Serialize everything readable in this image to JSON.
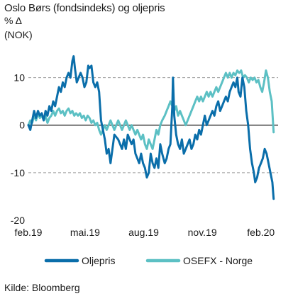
{
  "title": "Oslo Børs (fondsindeks) og oljepris",
  "unit_line1": "% Δ",
  "unit_line2": "(NOK)",
  "source": "Kilde: Bloomberg",
  "chart_data": {
    "type": "line",
    "ylim": [
      -20,
      15
    ],
    "yticks": [
      {
        "value": 10,
        "label": "10"
      },
      {
        "value": 0,
        "label": "0"
      },
      {
        "value": -10,
        "label": "-10"
      },
      {
        "value": -20,
        "label": "-20"
      }
    ],
    "xlim": [
      "2019-02-01",
      "2020-02-28"
    ],
    "xticks": [
      {
        "date": "2019-02-01",
        "label": "feb.19"
      },
      {
        "date": "2019-05-01",
        "label": "mai.19"
      },
      {
        "date": "2019-08-01",
        "label": "aug.19"
      },
      {
        "date": "2019-11-01",
        "label": "nov.19"
      },
      {
        "date": "2020-02-01",
        "label": "feb.20"
      }
    ],
    "grid": "horizontal dashed",
    "legend_position": "bottom",
    "series": [
      {
        "name": "Oljepris",
        "color": "#0a6eaa",
        "points": [
          [
            "2019-02-01",
            0
          ],
          [
            "2019-02-04",
            -1
          ],
          [
            "2019-02-07",
            1
          ],
          [
            "2019-02-10",
            3
          ],
          [
            "2019-02-13",
            1.5
          ],
          [
            "2019-02-16",
            3
          ],
          [
            "2019-02-19",
            2
          ],
          [
            "2019-02-22",
            2.5
          ],
          [
            "2019-02-25",
            1
          ],
          [
            "2019-02-28",
            3
          ],
          [
            "2019-03-03",
            2
          ],
          [
            "2019-03-06",
            4
          ],
          [
            "2019-03-09",
            3
          ],
          [
            "2019-03-12",
            5
          ],
          [
            "2019-03-15",
            4
          ],
          [
            "2019-03-18",
            6
          ],
          [
            "2019-03-21",
            8
          ],
          [
            "2019-03-24",
            7
          ],
          [
            "2019-03-27",
            9
          ],
          [
            "2019-03-30",
            8
          ],
          [
            "2019-04-02",
            10
          ],
          [
            "2019-04-05",
            11
          ],
          [
            "2019-04-08",
            10
          ],
          [
            "2019-04-11",
            13.5
          ],
          [
            "2019-04-13",
            14.5
          ],
          [
            "2019-04-15",
            12
          ],
          [
            "2019-04-18",
            9
          ],
          [
            "2019-04-21",
            10
          ],
          [
            "2019-04-24",
            11
          ],
          [
            "2019-04-27",
            10
          ],
          [
            "2019-04-30",
            8
          ],
          [
            "2019-05-03",
            9
          ],
          [
            "2019-05-06",
            12.5
          ],
          [
            "2019-05-08",
            12
          ],
          [
            "2019-05-11",
            12.5
          ],
          [
            "2019-05-14",
            9
          ],
          [
            "2019-05-17",
            8
          ],
          [
            "2019-05-20",
            9
          ],
          [
            "2019-05-23",
            7
          ],
          [
            "2019-05-26",
            1
          ],
          [
            "2019-05-29",
            -1
          ],
          [
            "2019-06-01",
            -3
          ],
          [
            "2019-06-04",
            -6
          ],
          [
            "2019-06-07",
            -5
          ],
          [
            "2019-06-10",
            -8
          ],
          [
            "2019-06-13",
            -5
          ],
          [
            "2019-06-16",
            -2
          ],
          [
            "2019-06-19",
            -2.5
          ],
          [
            "2019-06-22",
            -3
          ],
          [
            "2019-06-25",
            -4
          ],
          [
            "2019-06-28",
            -5
          ],
          [
            "2019-07-01",
            -3
          ],
          [
            "2019-07-04",
            -5
          ],
          [
            "2019-07-07",
            -2
          ],
          [
            "2019-07-10",
            -3
          ],
          [
            "2019-07-13",
            -4
          ],
          [
            "2019-07-16",
            -3
          ],
          [
            "2019-07-19",
            -6
          ],
          [
            "2019-07-22",
            -7
          ],
          [
            "2019-07-25",
            -8
          ],
          [
            "2019-07-28",
            -6
          ],
          [
            "2019-07-31",
            -8
          ],
          [
            "2019-08-03",
            -9
          ],
          [
            "2019-08-06",
            -11
          ],
          [
            "2019-08-09",
            -10
          ],
          [
            "2019-08-12",
            -6
          ],
          [
            "2019-08-15",
            -8
          ],
          [
            "2019-08-18",
            -9
          ],
          [
            "2019-08-21",
            -7
          ],
          [
            "2019-08-24",
            -9
          ],
          [
            "2019-08-27",
            -4
          ],
          [
            "2019-08-30",
            -6
          ],
          [
            "2019-09-03",
            -8
          ],
          [
            "2019-09-06",
            -7
          ],
          [
            "2019-09-09",
            -5
          ],
          [
            "2019-09-12",
            -4
          ],
          [
            "2019-09-15",
            4
          ],
          [
            "2019-09-16",
            10
          ],
          [
            "2019-09-18",
            2
          ],
          [
            "2019-09-21",
            -2
          ],
          [
            "2019-09-24",
            -4
          ],
          [
            "2019-09-27",
            -5
          ],
          [
            "2019-09-30",
            -3
          ],
          [
            "2019-10-03",
            -6
          ],
          [
            "2019-10-06",
            -5
          ],
          [
            "2019-10-09",
            -4
          ],
          [
            "2019-10-12",
            -3
          ],
          [
            "2019-10-15",
            -5
          ],
          [
            "2019-10-18",
            -4
          ],
          [
            "2019-10-21",
            -2
          ],
          [
            "2019-10-24",
            -3
          ],
          [
            "2019-10-27",
            -1
          ],
          [
            "2019-10-30",
            -2
          ],
          [
            "2019-11-02",
            0
          ],
          [
            "2019-11-05",
            2
          ],
          [
            "2019-11-08",
            0
          ],
          [
            "2019-11-11",
            1
          ],
          [
            "2019-11-14",
            2
          ],
          [
            "2019-11-17",
            3
          ],
          [
            "2019-11-20",
            2
          ],
          [
            "2019-11-23",
            4
          ],
          [
            "2019-11-26",
            5
          ],
          [
            "2019-11-29",
            3
          ],
          [
            "2019-12-02",
            4
          ],
          [
            "2019-12-05",
            5
          ],
          [
            "2019-12-08",
            6
          ],
          [
            "2019-12-11",
            5
          ],
          [
            "2019-12-14",
            7
          ],
          [
            "2019-12-17",
            8
          ],
          [
            "2019-12-20",
            9
          ],
          [
            "2019-12-23",
            8
          ],
          [
            "2019-12-26",
            10
          ],
          [
            "2019-12-28",
            7
          ],
          [
            "2019-12-31",
            6
          ],
          [
            "2020-01-03",
            10
          ],
          [
            "2020-01-06",
            8
          ],
          [
            "2020-01-09",
            3
          ],
          [
            "2020-01-12",
            0
          ],
          [
            "2020-01-15",
            -5
          ],
          [
            "2020-01-18",
            -8
          ],
          [
            "2020-01-21",
            -10
          ],
          [
            "2020-01-23",
            -12
          ],
          [
            "2020-01-26",
            -11
          ],
          [
            "2020-01-29",
            -9
          ],
          [
            "2020-02-01",
            -8
          ],
          [
            "2020-02-04",
            -7
          ],
          [
            "2020-02-07",
            -5
          ],
          [
            "2020-02-10",
            -6
          ],
          [
            "2020-02-13",
            -8
          ],
          [
            "2020-02-16",
            -10
          ],
          [
            "2020-02-19",
            -12
          ],
          [
            "2020-02-21",
            -15.5
          ]
        ]
      },
      {
        "name": "OSEFX - Norge",
        "color": "#5cc0c4",
        "points": [
          [
            "2019-02-01",
            0
          ],
          [
            "2019-02-04",
            1
          ],
          [
            "2019-02-07",
            0.5
          ],
          [
            "2019-02-10",
            2
          ],
          [
            "2019-02-13",
            1
          ],
          [
            "2019-02-16",
            2.5
          ],
          [
            "2019-02-19",
            1.5
          ],
          [
            "2019-02-22",
            2
          ],
          [
            "2019-02-25",
            1
          ],
          [
            "2019-02-28",
            2
          ],
          [
            "2019-03-03",
            0.5
          ],
          [
            "2019-03-06",
            1.5
          ],
          [
            "2019-03-09",
            2
          ],
          [
            "2019-03-12",
            3
          ],
          [
            "2019-03-15",
            2
          ],
          [
            "2019-03-18",
            3
          ],
          [
            "2019-03-21",
            3.5
          ],
          [
            "2019-03-24",
            2.5
          ],
          [
            "2019-03-27",
            3
          ],
          [
            "2019-03-30",
            2
          ],
          [
            "2019-04-02",
            3
          ],
          [
            "2019-04-05",
            3.5
          ],
          [
            "2019-04-08",
            2.5
          ],
          [
            "2019-04-11",
            3
          ],
          [
            "2019-04-14",
            2
          ],
          [
            "2019-04-17",
            2.5
          ],
          [
            "2019-04-20",
            2
          ],
          [
            "2019-04-23",
            2.5
          ],
          [
            "2019-04-26",
            1.5
          ],
          [
            "2019-04-29",
            2
          ],
          [
            "2019-05-02",
            1
          ],
          [
            "2019-05-05",
            2
          ],
          [
            "2019-05-08",
            1.5
          ],
          [
            "2019-05-11",
            0.5
          ],
          [
            "2019-05-14",
            1
          ],
          [
            "2019-05-17",
            0
          ],
          [
            "2019-05-20",
            0.5
          ],
          [
            "2019-05-23",
            -1
          ],
          [
            "2019-05-26",
            -2
          ],
          [
            "2019-05-29",
            -1
          ],
          [
            "2019-06-01",
            0
          ],
          [
            "2019-06-04",
            -1
          ],
          [
            "2019-06-07",
            0
          ],
          [
            "2019-06-10",
            1
          ],
          [
            "2019-06-13",
            0
          ],
          [
            "2019-06-16",
            -1
          ],
          [
            "2019-06-19",
            0
          ],
          [
            "2019-06-22",
            1
          ],
          [
            "2019-06-25",
            0
          ],
          [
            "2019-06-28",
            -1
          ],
          [
            "2019-07-01",
            0
          ],
          [
            "2019-07-04",
            1
          ],
          [
            "2019-07-07",
            0
          ],
          [
            "2019-07-10",
            -1
          ],
          [
            "2019-07-13",
            0
          ],
          [
            "2019-07-16",
            -1
          ],
          [
            "2019-07-19",
            -2
          ],
          [
            "2019-07-22",
            -1
          ],
          [
            "2019-07-25",
            -2
          ],
          [
            "2019-07-28",
            -3
          ],
          [
            "2019-07-31",
            -2
          ],
          [
            "2019-08-03",
            -4
          ],
          [
            "2019-08-06",
            -5
          ],
          [
            "2019-08-09",
            -3
          ],
          [
            "2019-08-12",
            -4
          ],
          [
            "2019-08-15",
            -5
          ],
          [
            "2019-08-18",
            -3
          ],
          [
            "2019-08-21",
            -1
          ],
          [
            "2019-08-24",
            -2
          ],
          [
            "2019-08-27",
            0
          ],
          [
            "2019-08-30",
            1
          ],
          [
            "2019-09-03",
            2
          ],
          [
            "2019-09-06",
            3
          ],
          [
            "2019-09-09",
            4
          ],
          [
            "2019-09-12",
            5
          ],
          [
            "2019-09-15",
            4
          ],
          [
            "2019-09-18",
            3
          ],
          [
            "2019-09-21",
            4
          ],
          [
            "2019-09-24",
            2
          ],
          [
            "2019-09-27",
            3
          ],
          [
            "2019-09-30",
            2
          ],
          [
            "2019-10-03",
            1
          ],
          [
            "2019-10-06",
            0
          ],
          [
            "2019-10-09",
            1
          ],
          [
            "2019-10-12",
            2
          ],
          [
            "2019-10-15",
            3
          ],
          [
            "2019-10-18",
            4
          ],
          [
            "2019-10-21",
            5
          ],
          [
            "2019-10-24",
            6
          ],
          [
            "2019-10-27",
            5
          ],
          [
            "2019-10-30",
            6
          ],
          [
            "2019-11-02",
            5
          ],
          [
            "2019-11-05",
            6
          ],
          [
            "2019-11-08",
            7
          ],
          [
            "2019-11-11",
            6
          ],
          [
            "2019-11-14",
            7
          ],
          [
            "2019-11-17",
            6
          ],
          [
            "2019-11-20",
            7
          ],
          [
            "2019-11-23",
            8
          ],
          [
            "2019-11-26",
            7
          ],
          [
            "2019-11-29",
            8
          ],
          [
            "2019-12-02",
            9
          ],
          [
            "2019-12-05",
            10
          ],
          [
            "2019-12-08",
            11
          ],
          [
            "2019-12-11",
            10
          ],
          [
            "2019-12-14",
            11
          ],
          [
            "2019-12-17",
            10
          ],
          [
            "2019-12-20",
            11
          ],
          [
            "2019-12-23",
            10.5
          ],
          [
            "2019-12-26",
            11.5
          ],
          [
            "2019-12-29",
            11
          ],
          [
            "2020-01-01",
            11.5
          ],
          [
            "2020-01-04",
            10
          ],
          [
            "2020-01-07",
            10.5
          ],
          [
            "2020-01-10",
            10
          ],
          [
            "2020-01-13",
            9
          ],
          [
            "2020-01-16",
            10
          ],
          [
            "2020-01-19",
            9.5
          ],
          [
            "2020-01-22",
            10
          ],
          [
            "2020-01-25",
            9
          ],
          [
            "2020-01-28",
            9.5
          ],
          [
            "2020-01-31",
            8
          ],
          [
            "2020-02-03",
            7
          ],
          [
            "2020-02-06",
            9
          ],
          [
            "2020-02-09",
            11.5
          ],
          [
            "2020-02-12",
            10
          ],
          [
            "2020-02-15",
            7
          ],
          [
            "2020-02-18",
            5
          ],
          [
            "2020-02-21",
            -1.5
          ]
        ]
      }
    ]
  }
}
